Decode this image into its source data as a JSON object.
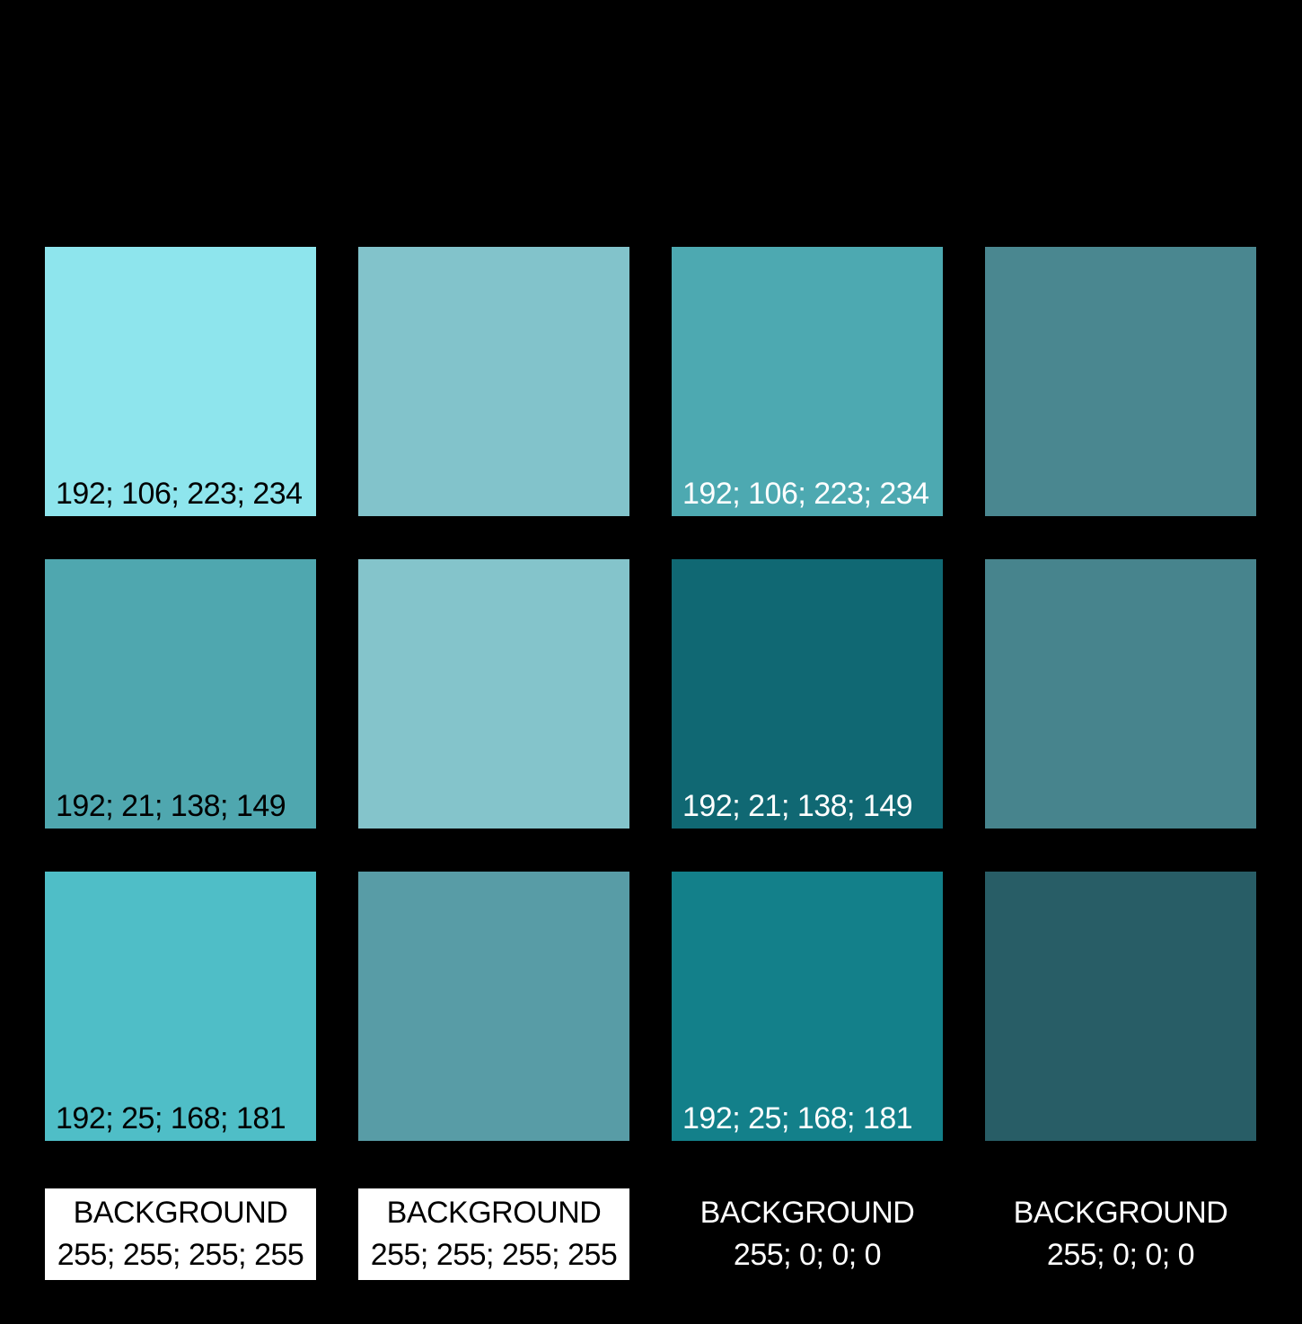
{
  "page": {
    "background": "#000000"
  },
  "swatches": {
    "rows": [
      {
        "cells": [
          {
            "fill": "#8EE5ED",
            "label": "192; 106; 223; 234",
            "label_color": "#000000"
          },
          {
            "fill": "#82C3CB",
            "label": "",
            "label_color": "#000000"
          },
          {
            "fill": "#4DA9B1",
            "label": "192; 106; 223; 234",
            "label_color": "#FFFFFF"
          },
          {
            "fill": "#4A8790",
            "label": "",
            "label_color": "#FFFFFF"
          }
        ]
      },
      {
        "cells": [
          {
            "fill": "#4FA7AF",
            "label": "192; 21; 138; 149",
            "label_color": "#000000"
          },
          {
            "fill": "#84C4CB",
            "label": "",
            "label_color": "#000000"
          },
          {
            "fill": "#106873",
            "label": "192; 21; 138; 149",
            "label_color": "#FFFFFF"
          },
          {
            "fill": "#47848D",
            "label": "",
            "label_color": "#FFFFFF"
          }
        ]
      },
      {
        "cells": [
          {
            "fill": "#4FBEC7",
            "label": "192; 25; 168; 181",
            "label_color": "#000000"
          },
          {
            "fill": "#589CA6",
            "label": "",
            "label_color": "#000000"
          },
          {
            "fill": "#13808A",
            "label": "192; 25; 168; 181",
            "label_color": "#FFFFFF"
          },
          {
            "fill": "#285D66",
            "label": "",
            "label_color": "#FFFFFF"
          }
        ]
      }
    ]
  },
  "footer": {
    "items": [
      {
        "title": "BACKGROUND",
        "value": "255; 255; 255; 255",
        "background": "#FFFFFF",
        "text_color": "#000000"
      },
      {
        "title": "BACKGROUND",
        "value": "255; 255; 255; 255",
        "background": "#FFFFFF",
        "text_color": "#000000"
      },
      {
        "title": "BACKGROUND",
        "value": "255; 0; 0; 0",
        "background": "",
        "text_color": "#FFFFFF"
      },
      {
        "title": "BACKGROUND",
        "value": "255; 0; 0; 0",
        "background": "",
        "text_color": "#FFFFFF"
      }
    ]
  }
}
